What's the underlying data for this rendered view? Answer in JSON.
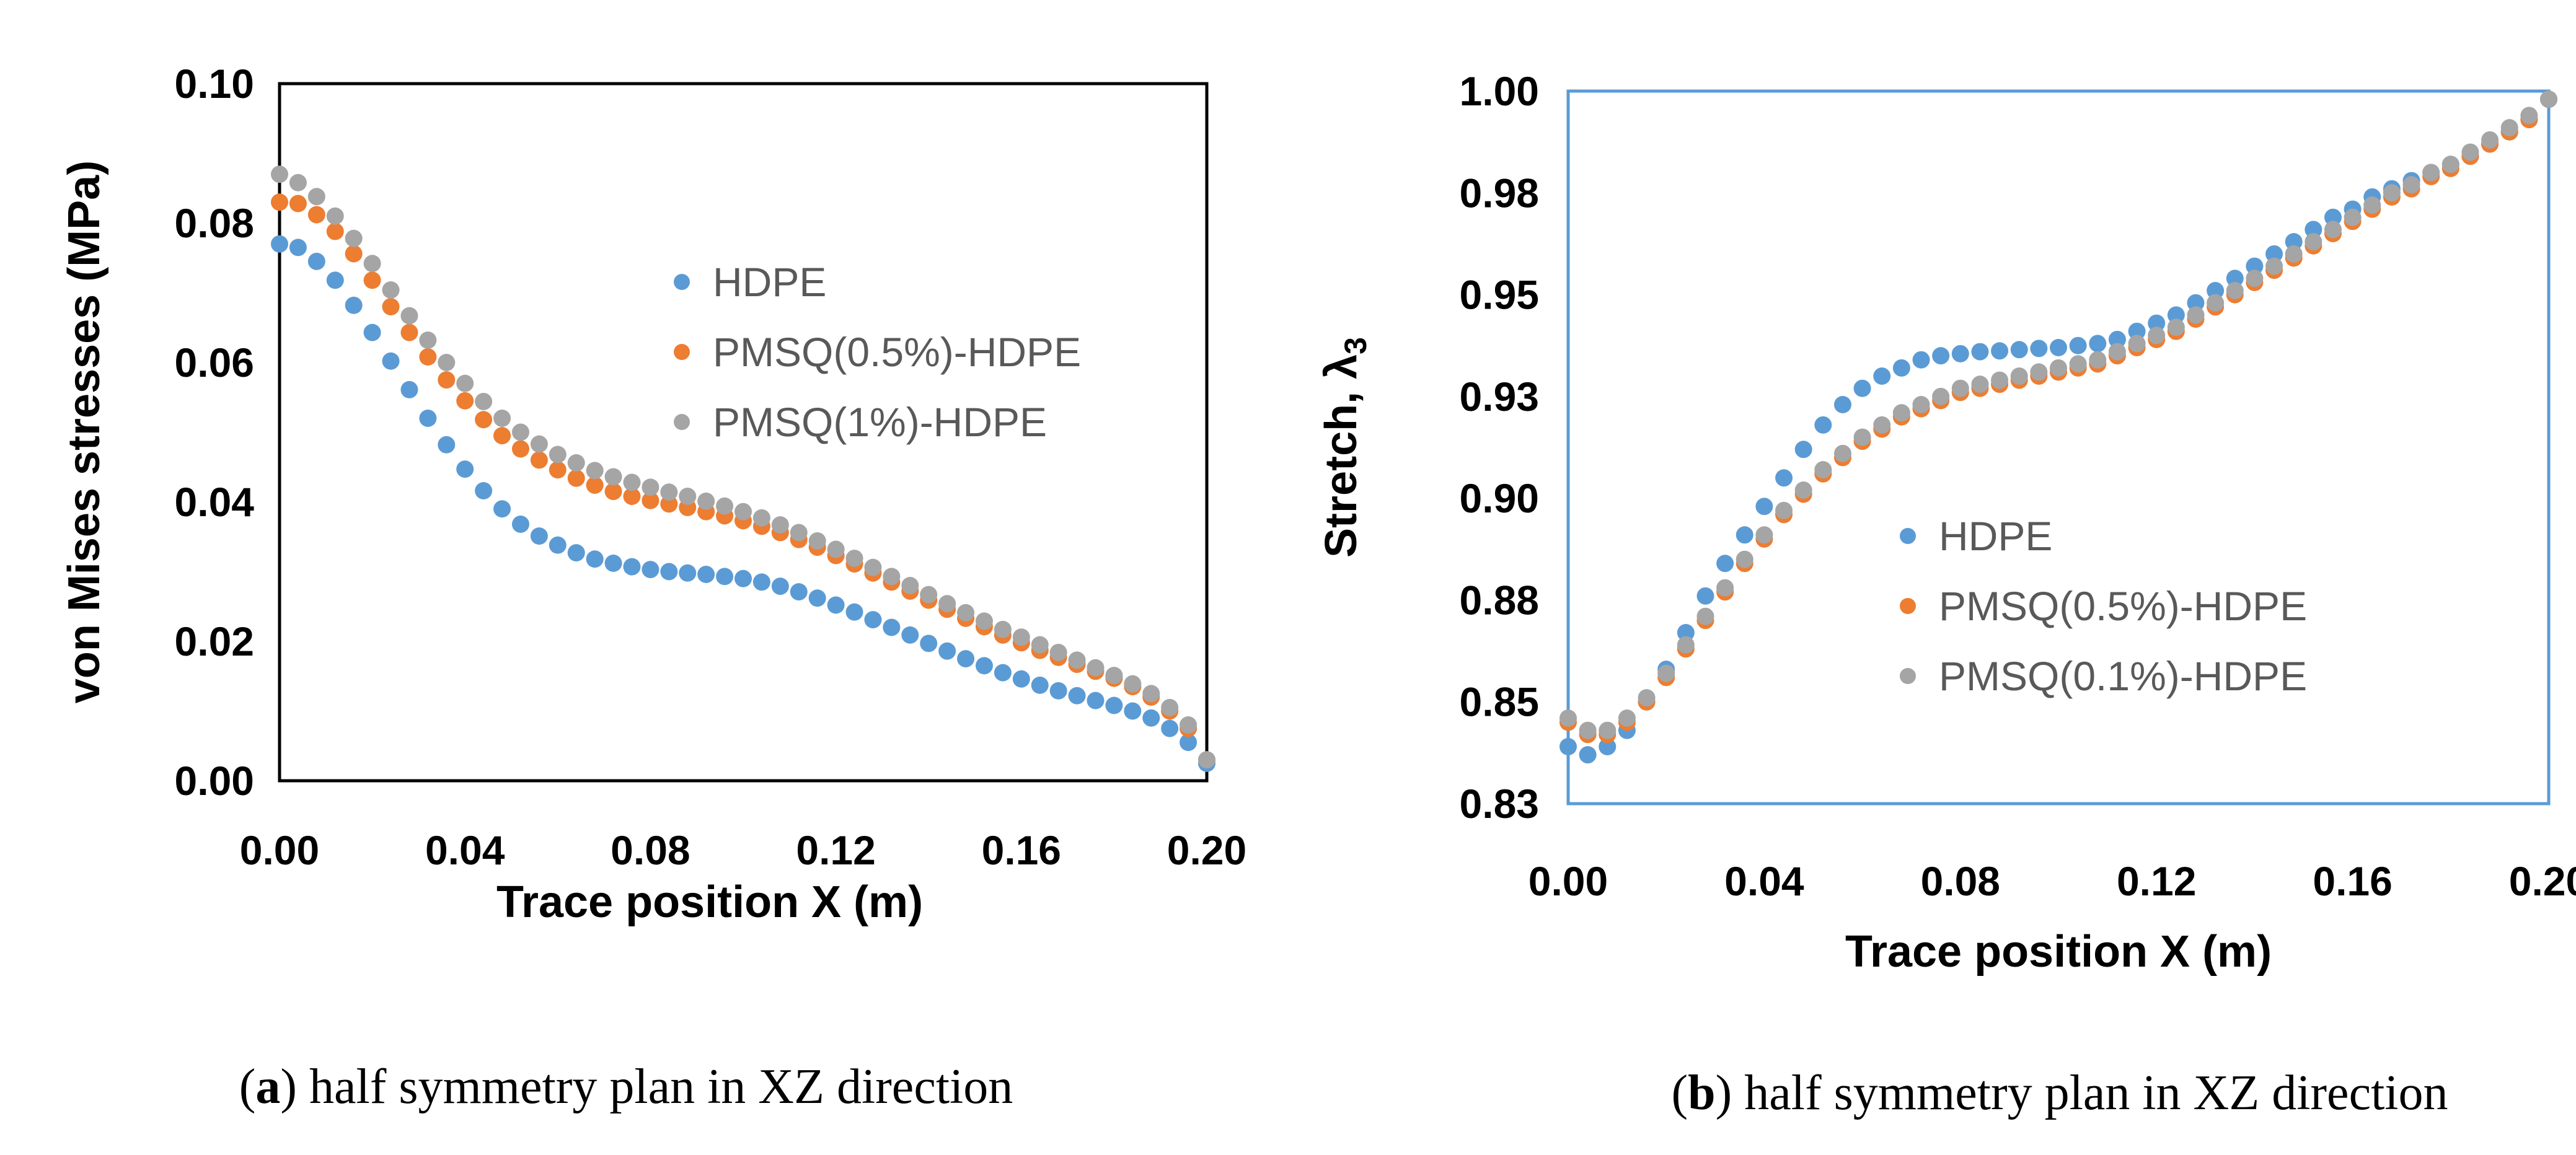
{
  "chart_data": [
    {
      "id": "a",
      "type": "scatter",
      "xlabel": "Trace position X (m)",
      "ylabel": "von Mises stresses (MPa)",
      "xlim": [
        0,
        0.2
      ],
      "ylim": [
        0,
        0.1
      ],
      "xticks": [
        "0.00",
        "0.04",
        "0.08",
        "0.12",
        "0.16",
        "0.20"
      ],
      "yticks": [
        "0.00",
        "0.02",
        "0.04",
        "0.06",
        "0.08",
        "0.10"
      ],
      "grid": false,
      "legend_position": "center-right",
      "caption": {
        "label": "a",
        "text": "half symmetry plan in XZ direction"
      },
      "x": [
        0.0,
        0.004,
        0.008,
        0.012,
        0.016,
        0.02,
        0.024,
        0.028,
        0.032,
        0.036,
        0.04,
        0.044,
        0.048,
        0.052,
        0.056,
        0.06,
        0.064,
        0.068,
        0.072,
        0.076,
        0.08,
        0.084,
        0.088,
        0.092,
        0.096,
        0.1,
        0.104,
        0.108,
        0.112,
        0.116,
        0.12,
        0.124,
        0.128,
        0.132,
        0.136,
        0.14,
        0.144,
        0.148,
        0.152,
        0.156,
        0.16,
        0.164,
        0.168,
        0.172,
        0.176,
        0.18,
        0.184,
        0.188,
        0.192,
        0.196,
        0.2
      ],
      "series": [
        {
          "name": "HDPE",
          "color": "#5b9bd5",
          "values": [
            0.077,
            0.0765,
            0.0745,
            0.0718,
            0.0682,
            0.0643,
            0.0602,
            0.0561,
            0.052,
            0.0482,
            0.0447,
            0.0416,
            0.039,
            0.0368,
            0.0351,
            0.0338,
            0.0327,
            0.0318,
            0.0312,
            0.0307,
            0.0303,
            0.03,
            0.0298,
            0.0296,
            0.0293,
            0.029,
            0.0285,
            0.0279,
            0.0271,
            0.0262,
            0.0252,
            0.0242,
            0.0231,
            0.022,
            0.0209,
            0.0197,
            0.0186,
            0.0175,
            0.0165,
            0.0155,
            0.0146,
            0.0137,
            0.0129,
            0.0122,
            0.0115,
            0.0108,
            0.01,
            0.009,
            0.0075,
            0.0055,
            0.0025
          ]
        },
        {
          "name": "PMSQ(0.5%)-HDPE",
          "color": "#ed7d31",
          "values": [
            0.083,
            0.0828,
            0.0812,
            0.0788,
            0.0756,
            0.0718,
            0.068,
            0.0643,
            0.0608,
            0.0575,
            0.0545,
            0.0518,
            0.0495,
            0.0476,
            0.046,
            0.0446,
            0.0434,
            0.0424,
            0.0415,
            0.0408,
            0.0402,
            0.0397,
            0.0392,
            0.0386,
            0.038,
            0.0373,
            0.0365,
            0.0356,
            0.0346,
            0.0335,
            0.0323,
            0.0311,
            0.0298,
            0.0285,
            0.0272,
            0.0259,
            0.0246,
            0.0233,
            0.0221,
            0.0209,
            0.0198,
            0.0187,
            0.0177,
            0.0167,
            0.0157,
            0.0147,
            0.0135,
            0.012,
            0.01,
            0.0075,
            0.003
          ]
        },
        {
          "name": "PMSQ(1%)-HDPE",
          "color": "#a5a5a5",
          "values": [
            0.087,
            0.0858,
            0.0838,
            0.081,
            0.0778,
            0.0742,
            0.0704,
            0.0667,
            0.0632,
            0.06,
            0.057,
            0.0544,
            0.052,
            0.05,
            0.0483,
            0.0468,
            0.0456,
            0.0445,
            0.0436,
            0.0428,
            0.0421,
            0.0414,
            0.0408,
            0.0401,
            0.0394,
            0.0386,
            0.0377,
            0.0367,
            0.0356,
            0.0344,
            0.0332,
            0.0319,
            0.0306,
            0.0293,
            0.028,
            0.0267,
            0.0254,
            0.0241,
            0.0229,
            0.0217,
            0.0206,
            0.0195,
            0.0184,
            0.0173,
            0.0162,
            0.0151,
            0.0139,
            0.0125,
            0.0105,
            0.008,
            0.003
          ]
        }
      ]
    },
    {
      "id": "b",
      "type": "scatter",
      "xlabel": "Trace position X (m)",
      "ylabel": "Stretch, λ",
      "ylabel_sub": "3",
      "xlim": [
        0,
        0.2
      ],
      "ylim": [
        0.825,
        1.0
      ],
      "yticks_at": [
        0.825,
        0.85,
        0.875,
        0.9,
        0.925,
        0.95,
        0.975,
        1.0
      ],
      "xticks": [
        "0.00",
        "0.04",
        "0.08",
        "0.12",
        "0.16",
        "0.20"
      ],
      "yticks": [
        "0.83",
        "0.85",
        "0.88",
        "0.90",
        "0.93",
        "0.95",
        "0.98",
        "1.00"
      ],
      "grid": false,
      "legend_position": "center-right",
      "caption": {
        "label": "b",
        "text": "half symmetry plan in XZ direction"
      },
      "x": [
        0.0,
        0.004,
        0.008,
        0.012,
        0.016,
        0.02,
        0.024,
        0.028,
        0.032,
        0.036,
        0.04,
        0.044,
        0.048,
        0.052,
        0.056,
        0.06,
        0.064,
        0.068,
        0.072,
        0.076,
        0.08,
        0.084,
        0.088,
        0.092,
        0.096,
        0.1,
        0.104,
        0.108,
        0.112,
        0.116,
        0.12,
        0.124,
        0.128,
        0.132,
        0.136,
        0.14,
        0.144,
        0.148,
        0.152,
        0.156,
        0.16,
        0.164,
        0.168,
        0.172,
        0.176,
        0.18,
        0.184,
        0.188,
        0.192,
        0.196,
        0.2
      ],
      "series": [
        {
          "name": "HDPE",
          "color": "#5b9bd5",
          "values": [
            0.839,
            0.837,
            0.839,
            0.843,
            0.85,
            0.858,
            0.867,
            0.876,
            0.884,
            0.891,
            0.898,
            0.905,
            0.912,
            0.918,
            0.923,
            0.927,
            0.93,
            0.932,
            0.934,
            0.935,
            0.9355,
            0.936,
            0.9362,
            0.9365,
            0.9368,
            0.937,
            0.9375,
            0.938,
            0.939,
            0.941,
            0.943,
            0.945,
            0.948,
            0.951,
            0.954,
            0.957,
            0.96,
            0.963,
            0.966,
            0.969,
            0.971,
            0.974,
            0.976,
            0.978,
            0.98,
            0.982,
            0.984,
            0.987,
            0.99,
            0.993,
            0.998
          ]
        },
        {
          "name": "PMSQ(0.5%)-HDPE",
          "color": "#ed7d31",
          "values": [
            0.845,
            0.842,
            0.842,
            0.845,
            0.85,
            0.856,
            0.863,
            0.87,
            0.877,
            0.884,
            0.89,
            0.896,
            0.901,
            0.906,
            0.91,
            0.914,
            0.917,
            0.92,
            0.922,
            0.924,
            0.926,
            0.927,
            0.928,
            0.929,
            0.93,
            0.931,
            0.932,
            0.933,
            0.935,
            0.937,
            0.939,
            0.941,
            0.944,
            0.947,
            0.95,
            0.953,
            0.956,
            0.959,
            0.962,
            0.965,
            0.968,
            0.971,
            0.974,
            0.976,
            0.979,
            0.981,
            0.984,
            0.987,
            0.99,
            0.993,
            0.998
          ]
        },
        {
          "name": "PMSQ(0.1%)-HDPE",
          "color": "#a5a5a5",
          "values": [
            0.846,
            0.843,
            0.843,
            0.846,
            0.851,
            0.857,
            0.864,
            0.871,
            0.878,
            0.885,
            0.891,
            0.897,
            0.902,
            0.907,
            0.911,
            0.915,
            0.918,
            0.921,
            0.923,
            0.925,
            0.927,
            0.928,
            0.929,
            0.93,
            0.931,
            0.932,
            0.933,
            0.934,
            0.936,
            0.938,
            0.94,
            0.942,
            0.945,
            0.948,
            0.951,
            0.954,
            0.957,
            0.96,
            0.963,
            0.966,
            0.969,
            0.972,
            0.975,
            0.977,
            0.98,
            0.982,
            0.985,
            0.988,
            0.991,
            0.994,
            0.998
          ]
        }
      ]
    }
  ]
}
